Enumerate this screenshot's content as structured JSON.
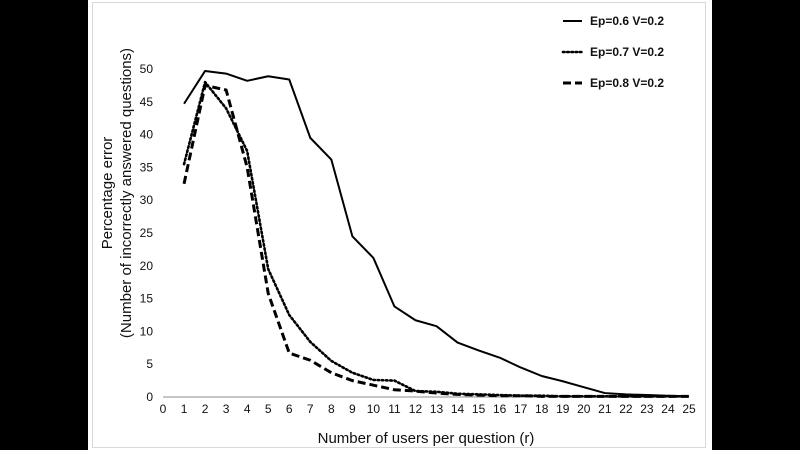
{
  "chart_data": {
    "type": "line",
    "title": "",
    "xlabel": "Number of users per question (r)",
    "ylabel_line1": "Percentage error",
    "ylabel_line2": "(Number of incorrectly answered questions)",
    "xlim": [
      0,
      25
    ],
    "ylim": [
      0,
      50
    ],
    "x_ticks": [
      0,
      1,
      2,
      3,
      4,
      5,
      6,
      7,
      8,
      9,
      10,
      11,
      12,
      13,
      14,
      15,
      16,
      17,
      18,
      19,
      20,
      21,
      22,
      23,
      24,
      25
    ],
    "y_ticks": [
      0,
      5,
      10,
      15,
      20,
      25,
      30,
      35,
      40,
      45,
      50
    ],
    "grid": false,
    "legend_position": "top-right",
    "x": [
      1,
      2,
      3,
      4,
      5,
      6,
      7,
      8,
      9,
      10,
      11,
      12,
      13,
      14,
      15,
      16,
      17,
      18,
      19,
      20,
      21,
      22,
      23,
      24,
      25
    ],
    "series": [
      {
        "name": "Ep=0.6 V=0.2",
        "style": "solid",
        "values": [
          44.7,
          49.7,
          49.3,
          48.2,
          48.9,
          48.4,
          39.5,
          36.2,
          24.5,
          21.2,
          13.8,
          11.7,
          10.8,
          8.3,
          7.1,
          6.0,
          4.5,
          3.2,
          2.4,
          1.5,
          0.6,
          0.4,
          0.3,
          0.2,
          0.1
        ]
      },
      {
        "name": "Ep=0.7 V=0.2",
        "style": "dotted",
        "values": [
          35.5,
          48.0,
          44.0,
          37.5,
          19.5,
          12.5,
          8.4,
          5.5,
          3.7,
          2.6,
          2.5,
          0.9,
          0.8,
          0.5,
          0.4,
          0.3,
          0.2,
          0.2,
          0.1,
          0.1,
          0.1,
          0.1,
          0.1,
          0.1,
          0.1
        ]
      },
      {
        "name": "Ep=0.8 V=0.2",
        "style": "dashed",
        "values": [
          32.5,
          47.5,
          46.8,
          35.0,
          15.8,
          6.7,
          5.6,
          3.7,
          2.5,
          1.8,
          1.1,
          0.9,
          0.6,
          0.4,
          0.3,
          0.2,
          0.2,
          0.1,
          0.1,
          0.1,
          0.1,
          0.1,
          0.1,
          0.1,
          0.1
        ]
      }
    ],
    "line_color": "#000000"
  }
}
